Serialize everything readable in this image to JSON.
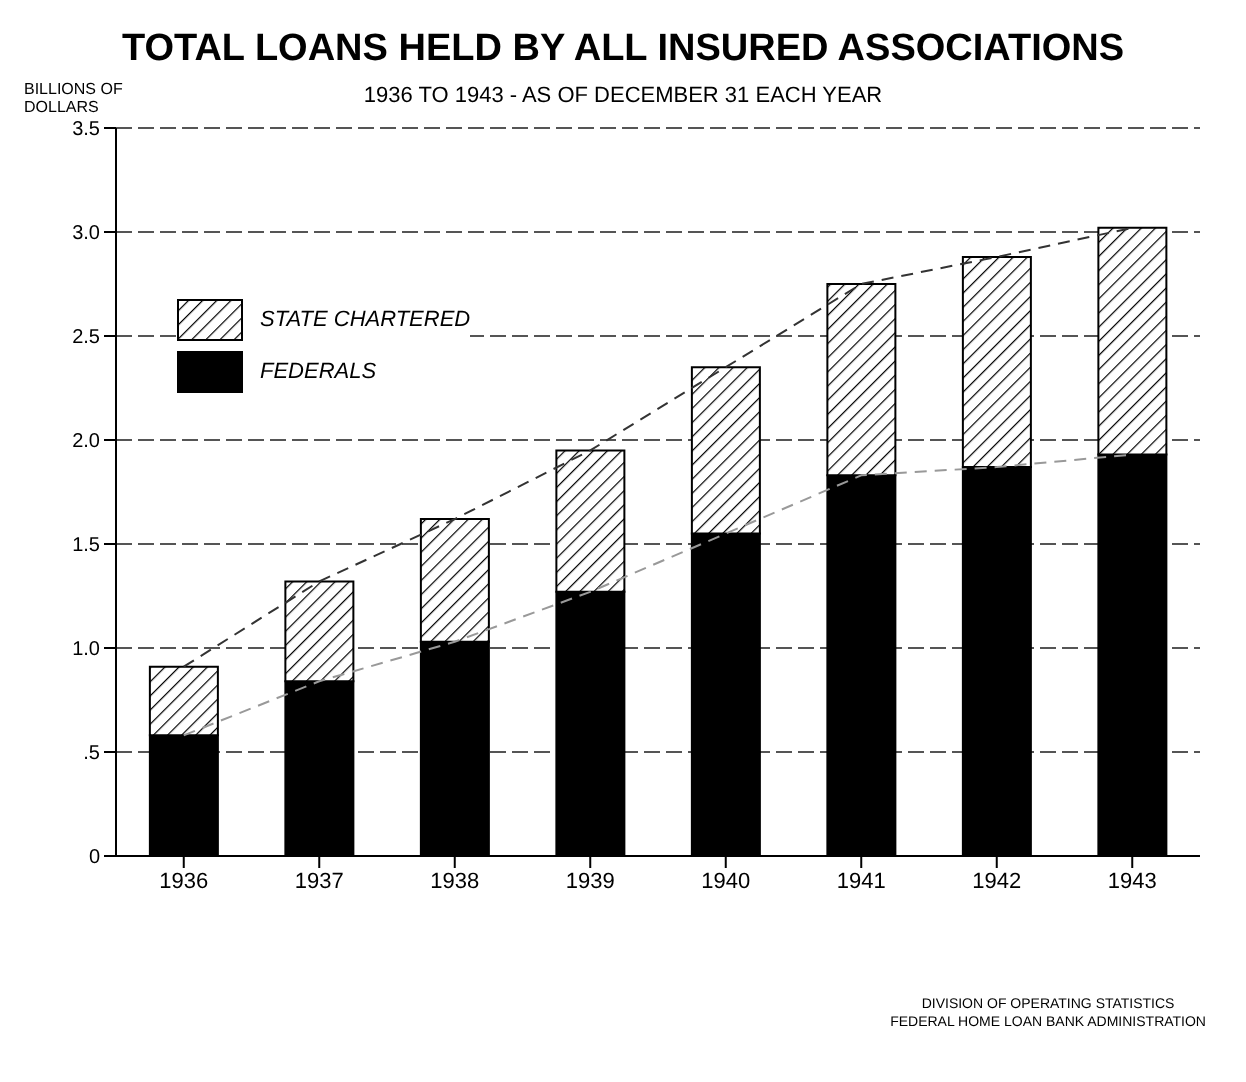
{
  "chart_data": {
    "type": "bar",
    "title": "TOTAL LOANS HELD BY ALL INSURED ASSOCIATIONS",
    "subtitle": "1936 TO 1943 - AS OF DECEMBER 31 EACH YEAR",
    "ylabel": "BILLIONS OF DOLLARS",
    "categories": [
      "1936",
      "1937",
      "1938",
      "1939",
      "1940",
      "1941",
      "1942",
      "1943"
    ],
    "stacked": true,
    "series": [
      {
        "name": "FEDERALS",
        "color": "#000000",
        "values": [
          0.58,
          0.84,
          1.03,
          1.27,
          1.55,
          1.83,
          1.87,
          1.93
        ]
      },
      {
        "name": "STATE CHARTERED",
        "color": "#000000",
        "values": [
          0.33,
          0.48,
          0.59,
          0.68,
          0.8,
          0.92,
          1.01,
          1.09
        ]
      },
      {
        "type": "line",
        "color": "#999999",
        "line_style": "dashed",
        "values": [
          0.58,
          0.84,
          1.03,
          1.27,
          1.55,
          1.83,
          1.87,
          1.93
        ]
      },
      {
        "type": "line",
        "color": "#333333",
        "line_style": "dashed",
        "values": [
          0.91,
          1.32,
          1.62,
          1.95,
          2.35,
          2.75,
          2.88,
          3.02
        ]
      }
    ],
    "ylim": [
      0,
      3.5
    ],
    "yticks": [
      0,
      {
        "value": 0.5,
        "label": ".5"
      },
      {
        "value": 1,
        "label": "1.0"
      },
      {
        "value": 1.5,
        "label": "1.5"
      },
      {
        "value": 2,
        "label": "2.0"
      },
      {
        "value": 2.5,
        "label": "2.5"
      },
      {
        "value": 3,
        "label": "3.0"
      },
      {
        "value": 3.5,
        "label": "3.5"
      }
    ],
    "grid": "y",
    "legend": "top left",
    "annotations": [
      "DIVISION OF OPERATING STATISTICS",
      "FEDERAL HOME LOAN BANK ADMINISTRATION"
    ]
  }
}
